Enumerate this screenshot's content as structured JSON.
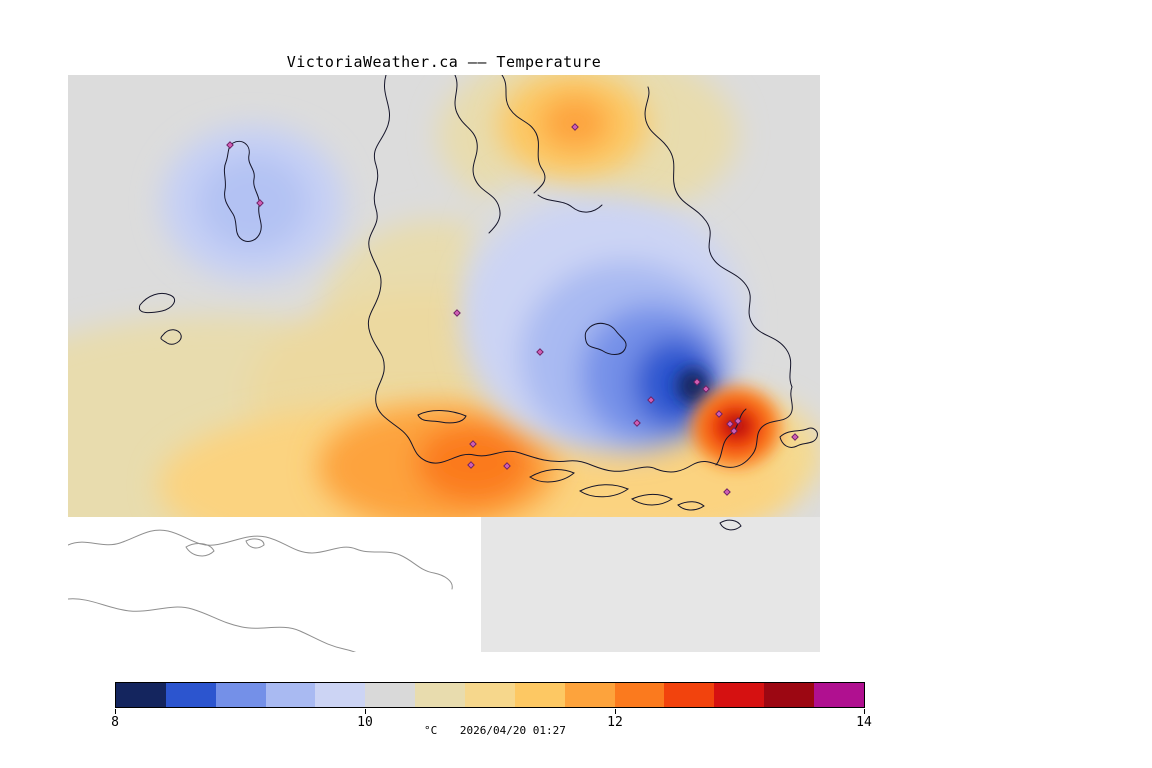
{
  "title": "VictoriaWeather.ca —— Temperature",
  "colorbar": {
    "range_min": 8,
    "range_max": 14,
    "ticks": [
      "8",
      "10",
      "12",
      "14"
    ],
    "unit": "°C",
    "timestamp": "2026/04/20 01:27",
    "colors": [
      "#14255e",
      "#2c55cf",
      "#7490e8",
      "#a9baf2",
      "#ccd4f4",
      "#d9d9d9",
      "#e8dcae",
      "#f6d78c",
      "#fdc863",
      "#fda33c",
      "#fb7a1e",
      "#f2430d",
      "#d61111",
      "#9c0712",
      "#b01090"
    ]
  },
  "map_colors": {
    "background_gray": "#dcdcdc",
    "no_data_white": "#ffffff",
    "coastline": "#15152a",
    "us_coastline_gray": "#8f8f8f",
    "station_marker": "#cf5fb4",
    "cold_core_navy": "#14255e",
    "hot_core_dark_red": "#9c0712"
  }
}
